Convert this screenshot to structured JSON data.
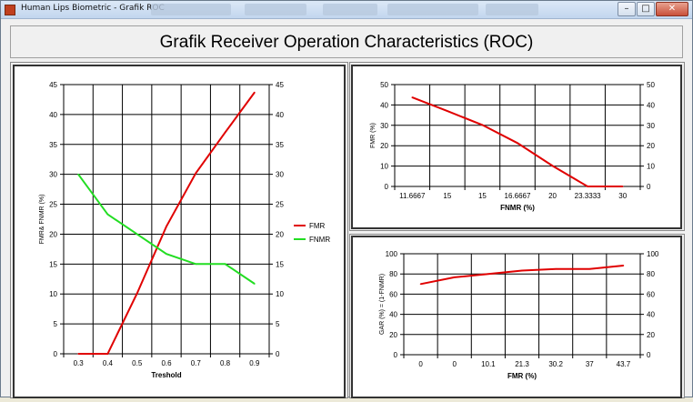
{
  "window": {
    "title": "Human Lips Biometric - Grafik ROC",
    "minimize_glyph": "–",
    "maximize_glyph": "□",
    "close_glyph": "✕"
  },
  "header": {
    "title": "Grafik Receiver Operation Characteristics (ROC)"
  },
  "colors": {
    "fmr": "#e00000",
    "fnmr": "#22dd22",
    "roc": "#e00000",
    "grid": "#000000"
  },
  "chart_data": [
    {
      "id": "threshold",
      "type": "line",
      "categories": [
        "0.3",
        "0.4",
        "0.5",
        "0.6",
        "0.7",
        "0.8",
        "0.9"
      ],
      "xlabel": "Treshold",
      "ylabel": "FMR& FNMR (%)",
      "ylim": [
        0,
        45
      ],
      "yticks": [
        0,
        5,
        10,
        15,
        20,
        25,
        30,
        35,
        40,
        45
      ],
      "secondary_y_axis": true,
      "grid": true,
      "legend_position": "right",
      "series": [
        {
          "name": "FMR",
          "color": "#e00000",
          "values": [
            0,
            0,
            10.1,
            21.3,
            30.2,
            37,
            43.7
          ]
        },
        {
          "name": "FNMR",
          "color": "#22dd22",
          "values": [
            30,
            23.3,
            20,
            16.7,
            15,
            15,
            11.7
          ]
        }
      ]
    },
    {
      "id": "fmr-vs-fnmr",
      "type": "line",
      "categories": [
        "11.6667",
        "15",
        "15",
        "16.6667",
        "20",
        "23.3333",
        "30"
      ],
      "xlabel": "FNMR (%)",
      "ylabel": "FMR (%)",
      "ylim": [
        0,
        50
      ],
      "yticks": [
        0,
        10,
        20,
        30,
        40,
        50
      ],
      "secondary_y_axis": true,
      "grid": true,
      "series": [
        {
          "color": "#e00000",
          "values": [
            43.7,
            37,
            30.2,
            21.3,
            10.1,
            0,
            0
          ]
        }
      ]
    },
    {
      "id": "gar-vs-fmr",
      "type": "line",
      "categories": [
        "0",
        "0",
        "10.1",
        "21.3",
        "30.2",
        "37",
        "43.7"
      ],
      "xlabel": "FMR (%)",
      "ylabel": "GAR (%) = (1-FNMR)",
      "ylim": [
        0,
        100
      ],
      "yticks": [
        0,
        20,
        40,
        60,
        80,
        100
      ],
      "secondary_y_axis": true,
      "grid": true,
      "series": [
        {
          "color": "#e00000",
          "values": [
            70,
            76.7,
            80,
            83.3,
            85,
            85,
            88.3
          ]
        }
      ]
    }
  ]
}
